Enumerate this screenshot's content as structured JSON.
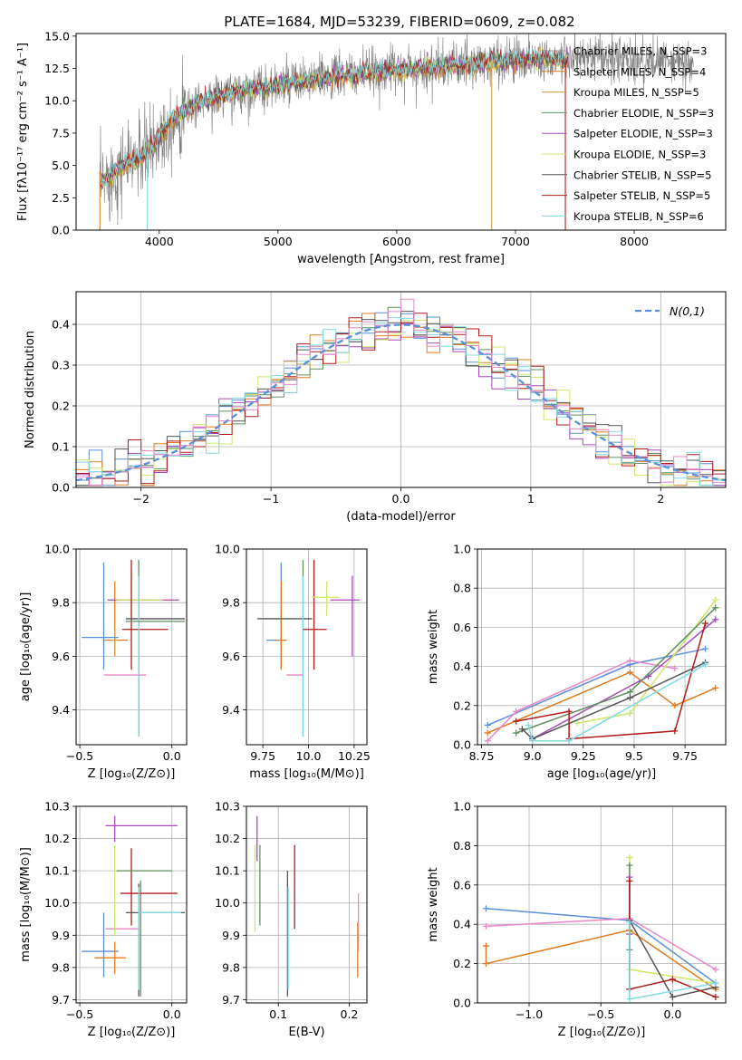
{
  "title": "PLATE=1684, MJD=53239, FIBERID=0609, z=0.082",
  "series_colors": [
    "#5a8fd9",
    "#e07b1f",
    "#c9a04a",
    "#5f8f5f",
    "#a849b8",
    "#cbe86a",
    "#555555",
    "#b01c1c",
    "#7fdbe0",
    "#e887c8"
  ],
  "chart_data": [
    {
      "id": "spectrum",
      "type": "line",
      "xlabel": "wavelength [Angstrom, rest frame]",
      "ylabel": "Flux [fλ10⁻¹⁷ erg cm⁻² s⁻¹ A⁻¹]",
      "xlim": [
        3300,
        8770
      ],
      "ylim": [
        0,
        15.2
      ],
      "xticks": [
        4000,
        5000,
        6000,
        7000,
        8000
      ],
      "yticks": [
        0.0,
        2.5,
        5.0,
        7.5,
        10.0,
        12.5,
        15.0
      ],
      "grid": false,
      "legend_position": "top-right",
      "legend": [
        "Chabrier MILES, N_SSP=3",
        "Salpeter MILES, N_SSP=4",
        "Kroupa MILES, N_SSP=5",
        "Chabrier ELODIE, N_SSP=3",
        "Salpeter ELODIE, N_SSP=3",
        "Kroupa ELODIE, N_SSP=3",
        "Chabrier STELIB, N_SSP=5",
        "Salpeter STELIB, N_SSP=5",
        "Kroupa STELIB, N_SSP=6"
      ],
      "legend_colors": [
        "#999999",
        "#e07b1f",
        "#c9a04a",
        "#5f8f5f",
        "#a849b8",
        "#cbe86a",
        "#555555",
        "#b01c1c",
        "#7fdbe0"
      ],
      "continuum": [
        [
          3500,
          3.5
        ],
        [
          3700,
          5
        ],
        [
          3900,
          6
        ],
        [
          4100,
          8.5
        ],
        [
          4300,
          9.8
        ],
        [
          4600,
          10.6
        ],
        [
          5000,
          11.2
        ],
        [
          5500,
          11.9
        ],
        [
          5900,
          12.3
        ],
        [
          6300,
          12.6
        ],
        [
          6700,
          12.9
        ],
        [
          7000,
          13.2
        ],
        [
          7400,
          13.3
        ],
        [
          7800,
          13.2
        ],
        [
          8200,
          13.0
        ],
        [
          8500,
          12.9
        ]
      ]
    },
    {
      "id": "residuals",
      "type": "histogram",
      "xlabel": "(data-model)/error",
      "ylabel": "Normed distribution",
      "xlim": [
        -2.5,
        2.5
      ],
      "ylim": [
        0,
        0.48
      ],
      "xticks": [
        -2,
        -1,
        0,
        1,
        2
      ],
      "yticks": [
        0.0,
        0.1,
        0.2,
        0.3,
        0.4
      ],
      "grid": true,
      "legend_position": "top-right",
      "legend": [
        "N(0,1)"
      ],
      "bin_width": 0.1
    },
    {
      "id": "age-vs-Z",
      "type": "errorbar",
      "xlabel": "Z [log₁₀(Z/Z⊙)]",
      "ylabel": "age [log₁₀(age/yr)]",
      "xlim": [
        -0.52,
        0.08
      ],
      "ylim": [
        9.27,
        10.0
      ],
      "xticks": [
        -0.5,
        0.0
      ],
      "yticks": [
        9.4,
        9.6,
        9.8,
        10.0
      ],
      "grid": true,
      "points": [
        {
          "c": 0,
          "x": -0.37,
          "xe": [
            -0.37,
            -0.37
          ],
          "y": 9.67,
          "ye": [
            9.55,
            9.95
          ]
        },
        {
          "c": 1,
          "x": -0.31,
          "xe": [
            -0.37,
            -0.24
          ],
          "y": 9.66,
          "ye": [
            9.6,
            9.88
          ]
        },
        {
          "c": 2,
          "x": -0.31,
          "xe": [
            -0.32,
            -0.3
          ],
          "y": 9.66,
          "ye": [
            9.61,
            9.7
          ]
        },
        {
          "c": 0,
          "x": -0.37,
          "xe": [
            -0.49,
            -0.29
          ],
          "y": 9.67,
          "ye": [
            9.67,
            9.67
          ]
        },
        {
          "c": 9,
          "x": -0.25,
          "xe": [
            -0.37,
            -0.14
          ],
          "y": 9.53,
          "ye": [
            9.53,
            9.53
          ]
        },
        {
          "c": 4,
          "x": -0.2,
          "xe": [
            -0.35,
            0.04
          ],
          "y": 9.81,
          "ye": [
            9.81,
            9.81
          ]
        },
        {
          "c": 5,
          "x": -0.22,
          "xe": [
            -0.3,
            -0.05
          ],
          "y": 9.81,
          "ye": [
            9.75,
            9.92
          ]
        },
        {
          "c": 7,
          "x": -0.22,
          "xe": [
            -0.27,
            -0.02
          ],
          "y": 9.7,
          "ye": [
            9.55,
            9.96
          ]
        },
        {
          "c": 3,
          "x": -0.18,
          "xe": [
            -0.18,
            -0.18
          ],
          "y": 9.7,
          "ye": [
            9.3,
            9.96
          ]
        },
        {
          "c": 6,
          "x": -0.12,
          "xe": [
            -0.25,
            0.07
          ],
          "y": 9.74,
          "ye": [
            9.74,
            9.74
          ]
        },
        {
          "c": 8,
          "x": -0.18,
          "xe": [
            -0.18,
            -0.18
          ],
          "y": 9.74,
          "ye": [
            9.3,
            9.9
          ]
        },
        {
          "c": 3,
          "x": -0.12,
          "xe": [
            -0.25,
            0.07
          ],
          "y": 9.73,
          "ye": [
            9.73,
            9.73
          ]
        }
      ]
    },
    {
      "id": "age-vs-mass",
      "type": "errorbar",
      "xlabel": "mass [log₁₀(M/M⊙)]",
      "ylabel": "",
      "xlim": [
        9.66,
        10.32
      ],
      "ylim": [
        9.27,
        10.0
      ],
      "xticks": [
        9.75,
        10.0,
        10.25
      ],
      "yticks": [
        9.4,
        9.6,
        9.8,
        10.0
      ],
      "grid": true,
      "points": [
        {
          "c": 0,
          "x": 9.85,
          "xe": [
            9.77,
            9.88
          ],
          "y": 9.66,
          "ye": [
            9.55,
            9.95
          ]
        },
        {
          "c": 1,
          "x": 9.85,
          "xe": [
            9.82,
            9.88
          ],
          "y": 9.66,
          "ye": [
            9.55,
            9.88
          ]
        },
        {
          "c": 9,
          "x": 9.92,
          "xe": [
            9.88,
            9.97
          ],
          "y": 9.53,
          "ye": [
            9.53,
            9.53
          ]
        },
        {
          "c": 6,
          "x": 9.9,
          "xe": [
            9.72,
            10.02
          ],
          "y": 9.74,
          "ye": [
            9.74,
            9.74
          ]
        },
        {
          "c": 3,
          "x": 9.97,
          "xe": [
            9.97,
            9.97
          ],
          "y": 9.7,
          "ye": [
            9.3,
            9.96
          ]
        },
        {
          "c": 8,
          "x": 9.97,
          "xe": [
            9.97,
            9.97
          ],
          "y": 9.74,
          "ye": [
            9.3,
            9.9
          ]
        },
        {
          "c": 7,
          "x": 10.03,
          "xe": [
            9.97,
            10.1
          ],
          "y": 9.7,
          "ye": [
            9.55,
            9.96
          ]
        },
        {
          "c": 5,
          "x": 10.1,
          "xe": [
            10.02,
            10.17
          ],
          "y": 9.82,
          "ye": [
            9.75,
            9.88
          ]
        },
        {
          "c": 4,
          "x": 10.24,
          "xe": [
            10.12,
            10.28
          ],
          "y": 9.81,
          "ye": [
            9.6,
            9.9
          ]
        }
      ]
    },
    {
      "id": "mass-weight-vs-age",
      "type": "line",
      "xlabel": "age [log₁₀(age/yr)]",
      "ylabel": "mass weight",
      "xlim": [
        8.73,
        9.95
      ],
      "ylim": [
        0,
        1.0
      ],
      "xticks": [
        8.75,
        9.0,
        9.25,
        9.5,
        9.75
      ],
      "yticks": [
        0.0,
        0.2,
        0.4,
        0.6,
        0.8,
        1.0
      ],
      "grid": true,
      "series": [
        {
          "c": 0,
          "x": [
            8.78,
            9.48,
            9.85
          ],
          "y": [
            0.1,
            0.41,
            0.49
          ]
        },
        {
          "c": 1,
          "x": [
            8.78,
            9.48,
            9.7,
            9.9
          ],
          "y": [
            0.06,
            0.37,
            0.2,
            0.29
          ]
        },
        {
          "c": 9,
          "x": [
            8.78,
            8.92,
            9.48,
            9.7
          ],
          "y": [
            0.02,
            0.17,
            0.43,
            0.39
          ]
        },
        {
          "c": 4,
          "x": [
            9.0,
            9.57,
            9.9
          ],
          "y": [
            0.03,
            0.35,
            0.64
          ]
        },
        {
          "c": 5,
          "x": [
            9.22,
            9.48,
            9.9
          ],
          "y": [
            0.11,
            0.16,
            0.74
          ]
        },
        {
          "c": 3,
          "x": [
            8.92,
            9.48,
            9.9
          ],
          "y": [
            0.06,
            0.27,
            0.7
          ]
        },
        {
          "c": 6,
          "x": [
            8.95,
            9.0,
            9.48,
            9.85
          ],
          "y": [
            0.08,
            0.03,
            0.24,
            0.42
          ]
        },
        {
          "c": 7,
          "x": [
            8.92,
            9.18,
            9.18,
            9.7,
            9.85
          ],
          "y": [
            0.12,
            0.17,
            0.03,
            0.07,
            0.62
          ]
        },
        {
          "c": 8,
          "x": [
            8.98,
            9.0,
            9.18,
            9.85
          ],
          "y": [
            0.1,
            0.02,
            0.02,
            0.41
          ]
        }
      ]
    },
    {
      "id": "mass-vs-Z",
      "type": "errorbar",
      "xlabel": "Z [log₁₀(Z/Z⊙)]",
      "ylabel": "mass [log₁₀(M/M⊙)]",
      "xlim": [
        -0.52,
        0.08
      ],
      "ylim": [
        9.69,
        10.3
      ],
      "xticks": [
        -0.5,
        0.0
      ],
      "yticks": [
        9.7,
        9.8,
        9.9,
        10.0,
        10.1,
        10.2,
        10.3
      ],
      "grid": true,
      "points": [
        {
          "c": 0,
          "x": -0.37,
          "xe": [
            -0.49,
            -0.29
          ],
          "y": 9.85,
          "ye": [
            9.77,
            9.97
          ]
        },
        {
          "c": 1,
          "x": -0.31,
          "xe": [
            -0.42,
            -0.25
          ],
          "y": 9.83,
          "ye": [
            9.78,
            9.88
          ]
        },
        {
          "c": 9,
          "x": -0.27,
          "xe": [
            -0.36,
            -0.18
          ],
          "y": 9.92,
          "ye": [
            9.92,
            9.92
          ]
        },
        {
          "c": 4,
          "x": -0.31,
          "xe": [
            -0.36,
            0.03
          ],
          "y": 10.24,
          "ye": [
            10.19,
            10.27
          ]
        },
        {
          "c": 5,
          "x": -0.31,
          "xe": [
            -0.31,
            -0.08
          ],
          "y": 10.1,
          "ye": [
            9.9,
            10.18
          ]
        },
        {
          "c": 7,
          "x": -0.22,
          "xe": [
            -0.28,
            0.03
          ],
          "y": 10.03,
          "ye": [
            9.93,
            10.17
          ]
        },
        {
          "c": 3,
          "x": -0.17,
          "xe": [
            -0.3,
            0.0
          ],
          "y": 10.1,
          "ye": [
            9.71,
            10.07
          ]
        },
        {
          "c": 6,
          "x": -0.18,
          "xe": [
            -0.25,
            0.07
          ],
          "y": 9.97,
          "ye": [
            9.71,
            10.06
          ]
        },
        {
          "c": 8,
          "x": -0.18,
          "xe": [
            -0.18,
            0.05
          ],
          "y": 9.97,
          "ye": [
            9.73,
            10.05
          ]
        }
      ]
    },
    {
      "id": "mass-vs-EBV",
      "type": "errorbar",
      "xlabel": "E(B-V)",
      "ylabel": "",
      "xlim": [
        0.055,
        0.225
      ],
      "ylim": [
        9.69,
        10.3
      ],
      "xticks": [
        0.1,
        0.2
      ],
      "yticks": [
        9.7,
        9.8,
        9.9,
        10.0,
        10.1,
        10.2,
        10.3
      ],
      "grid": true,
      "points": [
        {
          "c": 5,
          "x": 0.067,
          "xe": [
            0.067,
            0.067
          ],
          "y": 10.1,
          "ye": [
            9.91,
            10.18
          ]
        },
        {
          "c": 4,
          "x": 0.07,
          "xe": [
            0.07,
            0.07
          ],
          "y": 10.2,
          "ye": [
            10.13,
            10.27
          ]
        },
        {
          "c": 3,
          "x": 0.074,
          "xe": [
            0.074,
            0.074
          ],
          "y": 10.1,
          "ye": [
            9.93,
            10.18
          ]
        },
        {
          "c": 6,
          "x": 0.113,
          "xe": [
            0.113,
            0.113
          ],
          "y": 9.97,
          "ye": [
            9.71,
            10.1
          ]
        },
        {
          "c": 8,
          "x": 0.114,
          "xe": [
            0.114,
            0.114
          ],
          "y": 9.95,
          "ye": [
            9.73,
            10.05
          ]
        },
        {
          "c": 7,
          "x": 0.123,
          "xe": [
            0.123,
            0.123
          ],
          "y": 10.03,
          "ye": [
            9.92,
            10.18
          ]
        },
        {
          "c": 1,
          "x": 0.212,
          "xe": [
            0.212,
            0.212
          ],
          "y": 9.85,
          "ye": [
            9.77,
            9.94
          ]
        },
        {
          "c": 9,
          "x": 0.213,
          "xe": [
            0.213,
            0.213
          ],
          "y": 9.92,
          "ye": [
            9.85,
            10.03
          ]
        }
      ]
    },
    {
      "id": "mass-weight-vs-Z",
      "type": "line",
      "xlabel": "Z [log₁₀(Z/Z⊙)]",
      "ylabel": "mass weight",
      "xlim": [
        -1.36,
        0.37
      ],
      "ylim": [
        0,
        1.0
      ],
      "xticks": [
        -1.0,
        -0.5,
        0.0
      ],
      "yticks": [
        0.0,
        0.2,
        0.4,
        0.6,
        0.8,
        1.0
      ],
      "grid": true,
      "series": [
        {
          "c": 0,
          "x": [
            -1.3,
            -0.3,
            0.3
          ],
          "y": [
            0.48,
            0.42,
            0.1
          ]
        },
        {
          "c": 1,
          "x": [
            -1.3,
            -1.3,
            -0.3,
            0.3
          ],
          "y": [
            0.29,
            0.2,
            0.37,
            0.07
          ]
        },
        {
          "c": 9,
          "x": [
            -1.3,
            -0.3,
            0.3
          ],
          "y": [
            0.39,
            0.43,
            0.17
          ]
        },
        {
          "c": 5,
          "x": [
            -0.3,
            -0.3,
            0.3
          ],
          "y": [
            0.74,
            0.17,
            0.1
          ]
        },
        {
          "c": 3,
          "x": [
            -0.3,
            -0.3
          ],
          "y": [
            0.7,
            0.27
          ]
        },
        {
          "c": 4,
          "x": [
            -0.3,
            -0.3
          ],
          "y": [
            0.64,
            0.35
          ]
        },
        {
          "c": 6,
          "x": [
            -0.3,
            0.0,
            0.3
          ],
          "y": [
            0.42,
            0.03,
            0.08
          ]
        },
        {
          "c": 7,
          "x": [
            -0.3,
            -0.3,
            0.0,
            0.3
          ],
          "y": [
            0.62,
            0.07,
            0.12,
            0.03
          ]
        },
        {
          "c": 8,
          "x": [
            -0.3,
            -0.3,
            0.3
          ],
          "y": [
            0.41,
            0.02,
            0.1
          ]
        }
      ]
    }
  ]
}
